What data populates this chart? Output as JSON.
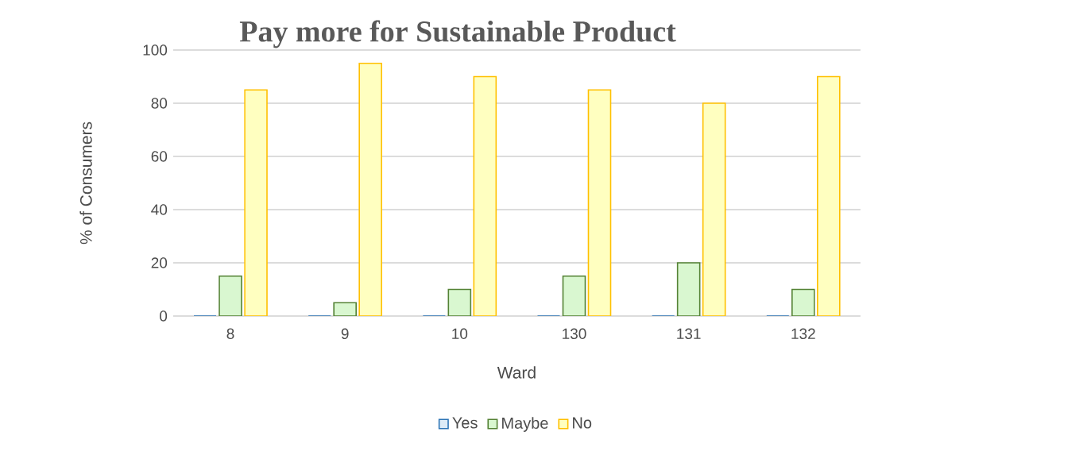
{
  "chart_data": {
    "type": "bar",
    "title": "Pay more for Sustainable Product",
    "xlabel": "Ward",
    "ylabel": "% of Consumers",
    "categories": [
      "8",
      "9",
      "10",
      "130",
      "131",
      "132"
    ],
    "series": [
      {
        "name": "Yes",
        "color": "#ddebf7",
        "values": [
          0,
          0,
          0,
          0,
          0,
          0
        ]
      },
      {
        "name": "Maybe",
        "color": "#d9f7d0",
        "values": [
          15,
          5,
          10,
          15,
          20,
          10
        ]
      },
      {
        "name": "No",
        "color": "#ffffc0",
        "values": [
          85,
          95,
          90,
          85,
          80,
          90
        ]
      }
    ],
    "ylim": [
      0,
      100
    ],
    "yticks": [
      0,
      20,
      40,
      60,
      80,
      100
    ],
    "grid": "y",
    "legend": "bottom"
  }
}
